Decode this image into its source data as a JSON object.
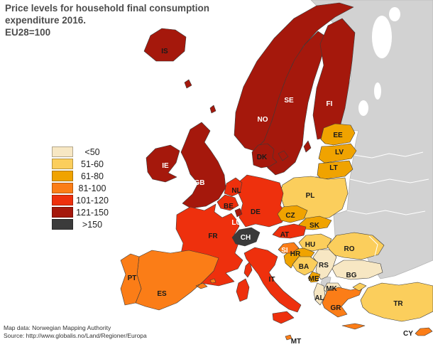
{
  "title": {
    "line1": "Price levels for household final consumption",
    "line2": "expenditure 2016.",
    "line3": "EU28=100"
  },
  "legend": {
    "items": [
      {
        "label": "<50",
        "color": "#F7E7C3"
      },
      {
        "label": "51-60",
        "color": "#FBCE5C"
      },
      {
        "label": "61-80",
        "color": "#F0A300"
      },
      {
        "label": "81-100",
        "color": "#FB7D17"
      },
      {
        "label": "101-120",
        "color": "#EE300D"
      },
      {
        "label": "121-150",
        "color": "#A5180C"
      },
      {
        "label": ">150",
        "color": "#3B3B3B"
      }
    ]
  },
  "map": {
    "sea_color": "#FFFFFF",
    "no_data_color": "#D2D2D2",
    "countries": [
      {
        "code": "NO",
        "category": 5,
        "label_style": "light"
      },
      {
        "code": "SE",
        "category": 5,
        "label_style": "light"
      },
      {
        "code": "FI",
        "category": 5,
        "label_style": "light"
      },
      {
        "code": "IS",
        "category": 5,
        "label_style": "dark"
      },
      {
        "code": "DK",
        "category": 5,
        "label_style": "dark"
      },
      {
        "code": "IE",
        "category": 5,
        "label_style": "light"
      },
      {
        "code": "GB",
        "category": 5,
        "label_style": "light"
      },
      {
        "code": "EE",
        "category": 2,
        "label_style": "dark"
      },
      {
        "code": "LV",
        "category": 2,
        "label_style": "dark"
      },
      {
        "code": "LT",
        "category": 2,
        "label_style": "dark"
      },
      {
        "code": "PL",
        "category": 1,
        "label_style": "dark"
      },
      {
        "code": "DE",
        "category": 4,
        "label_style": "dark"
      },
      {
        "code": "NL",
        "category": 4,
        "label_style": "dark"
      },
      {
        "code": "BE",
        "category": 4,
        "label_style": "dark"
      },
      {
        "code": "CZ",
        "category": 2,
        "label_style": "dark"
      },
      {
        "code": "SK",
        "category": 2,
        "label_style": "dark"
      },
      {
        "code": "FR",
        "category": 4,
        "label_style": "dark"
      },
      {
        "code": "LU",
        "category": 5,
        "label_style": "light"
      },
      {
        "code": "AT",
        "category": 4,
        "label_style": "dark"
      },
      {
        "code": "HU",
        "category": 1,
        "label_style": "dark"
      },
      {
        "code": "RO",
        "category": 1,
        "label_style": "dark"
      },
      {
        "code": "BG",
        "category": 0,
        "label_style": "dark"
      },
      {
        "code": "RS",
        "category": 0,
        "label_style": "dark"
      },
      {
        "code": "HR",
        "category": 2,
        "label_style": "dark"
      },
      {
        "code": "SI",
        "category": 3,
        "label_style": "light"
      },
      {
        "code": "BA",
        "category": 1,
        "label_style": "dark"
      },
      {
        "code": "ME",
        "category": 2,
        "label_style": "dark"
      },
      {
        "code": "MK",
        "category": 0,
        "label_style": "dark"
      },
      {
        "code": "AL",
        "category": 0,
        "label_style": "dark"
      },
      {
        "code": "GR",
        "category": 3,
        "label_style": "dark"
      },
      {
        "code": "TR",
        "category": 1,
        "label_style": "dark"
      },
      {
        "code": "IT",
        "category": 4,
        "label_style": "dark"
      },
      {
        "code": "ES",
        "category": 3,
        "label_style": "dark"
      },
      {
        "code": "PT",
        "category": 3,
        "label_style": "dark"
      },
      {
        "code": "CH",
        "category": 6,
        "label_style": "light"
      },
      {
        "code": "CY",
        "category": 3,
        "label_style": "dark"
      },
      {
        "code": "MT",
        "category": 3,
        "label_style": "dark"
      }
    ]
  },
  "footer": {
    "line1": "Map data: Norwegian Mapping Authority",
    "line2": "Source: http://www.globalis.no/Land/Regioner/Europa"
  }
}
